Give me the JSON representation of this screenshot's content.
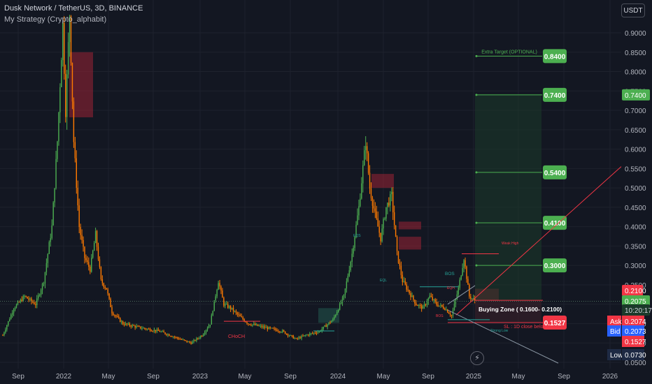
{
  "header": {
    "title": "Dusk Network / TetherUS, 3D, BINANCE",
    "strategy": "My Strategy (Crypto_alphabit)",
    "currency_button": "USDT"
  },
  "chart_data": {
    "type": "candlestick",
    "title": "Dusk Network / TetherUS, 3D, BINANCE",
    "xlabel": "",
    "ylabel": "",
    "x_ticks": [
      "Sep",
      "2022",
      "May",
      "Sep",
      "2023",
      "May",
      "Sep",
      "2024",
      "May",
      "Sep",
      "2025",
      "May",
      "Sep",
      "2026"
    ],
    "y_ticks": [
      "0.9000",
      "0.8500",
      "0.8000",
      "0.7500",
      "0.7000",
      "0.6500",
      "0.6000",
      "0.5500",
      "0.5000",
      "0.4500",
      "0.4000",
      "0.3500",
      "0.3000",
      "0.2500",
      "0.2000",
      "0.1500",
      "0.1000",
      "0.0500"
    ],
    "ylim": [
      0.04,
      0.92
    ],
    "colors": {
      "up": "#4caf50",
      "down": "#ff7a00",
      "target": "#4caf50",
      "stop": "#f23645",
      "resistance": "#9b2335",
      "accent": "#2962ff"
    },
    "targets": [
      {
        "label": "Extra Target (OPTIONAL)",
        "value": "0.8400"
      },
      {
        "label": "",
        "value": "0.7400"
      },
      {
        "label": "",
        "value": "0.5400"
      },
      {
        "label": "",
        "value": "0.4100"
      },
      {
        "label": "",
        "value": "0.3000"
      }
    ],
    "stop_value": "0.1527",
    "annotations": {
      "buying_zone": "Buying Zone ( 0.1600- 0.2100)",
      "sl": "SL : 1D close below",
      "choch": "CHoCH",
      "bos": "BOS",
      "weak_high": "Weak High",
      "strong_low": "Strong Low",
      "eqs": "EQS",
      "bos_small": "BOS",
      "eql": "EQL",
      "eqh": "EQH"
    },
    "price_tags": [
      {
        "label": "",
        "value": "0.7400"
      },
      {
        "label": "",
        "value": "0.2100"
      },
      {
        "label": "",
        "value": "0.2075"
      },
      {
        "label": "",
        "value": "10:20:17"
      },
      {
        "label": "Ask",
        "value": "0.2074"
      },
      {
        "label": "Bid",
        "value": "0.2073"
      },
      {
        "label": "",
        "value": "0.1527"
      },
      {
        "label": "Low",
        "value": "0.0730"
      }
    ]
  }
}
